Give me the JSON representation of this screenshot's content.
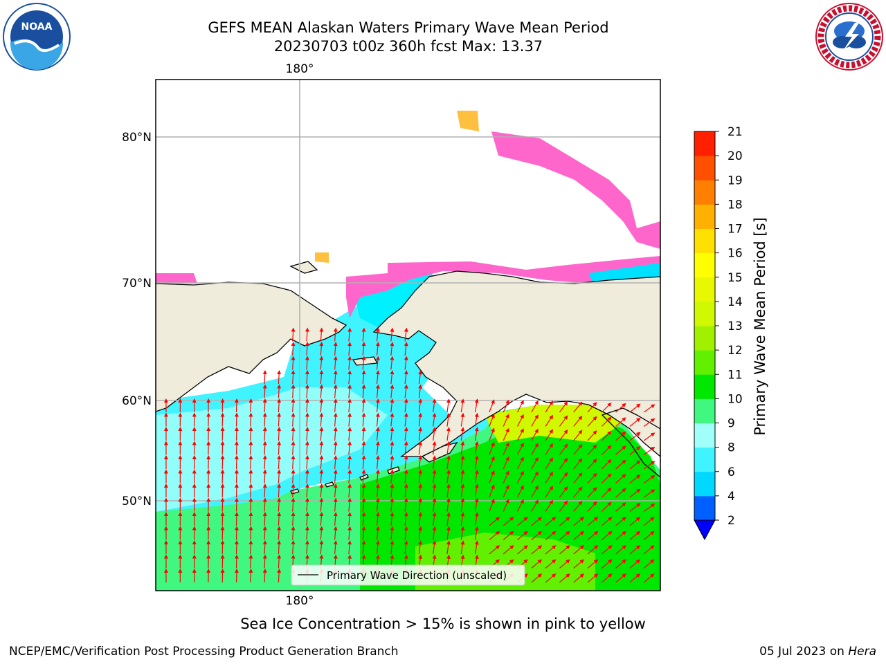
{
  "title": {
    "line1": "GEFS MEAN Alaskan Waters Primary Wave Mean Period",
    "line2": "20230703 t00z 360h fcst   Max: 13.37"
  },
  "logos": {
    "left": {
      "icon": "noaa-logo",
      "text": "NOAA"
    },
    "right": {
      "icon": "national-weather-service-logo"
    }
  },
  "map": {
    "region": "Alaskan Waters",
    "lon_labels": [
      "180°",
      "180°"
    ],
    "lat_labels": [
      "80°N",
      "70°N",
      "60°N",
      "50°N"
    ],
    "legend": "Primary Wave Direction (unscaled)",
    "colors": {
      "land": "#efecdc",
      "grid": "#b0b0b0",
      "arrow": "#ff0000"
    }
  },
  "colorbar": {
    "title": "Primary Wave Mean Period [s]",
    "ticks": [
      "2",
      "4",
      "6",
      "8",
      "9",
      "10",
      "11",
      "12",
      "13",
      "14",
      "15",
      "16",
      "17",
      "18",
      "19",
      "20",
      "21"
    ],
    "colors": [
      "#0060ff",
      "#00d8ff",
      "#40f4ff",
      "#a0fff8",
      "#40f880",
      "#00e800",
      "#60f000",
      "#a0f000",
      "#d0f800",
      "#e8f800",
      "#ffff00",
      "#ffe000",
      "#ffb000",
      "#ff8000",
      "#ff5000",
      "#ff2000"
    ],
    "under_color": "#0000ff"
  },
  "note": "Sea Ice Concentration > 15% is shown in pink to yellow",
  "footer": {
    "left": "NCEP/EMC/Verification Post Processing Product Generation Branch",
    "date": "05 Jul 2023 on ",
    "host": "Hera"
  }
}
